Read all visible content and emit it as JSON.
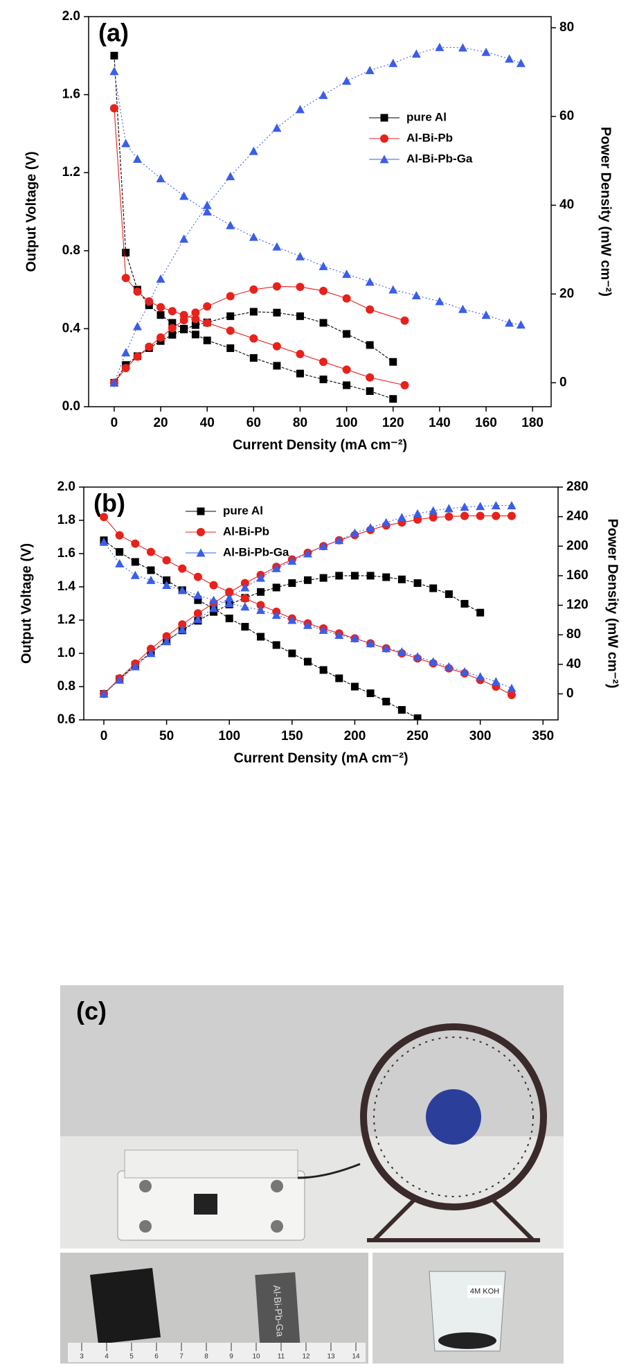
{
  "chart_data": [
    {
      "type": "line",
      "title": "(a)",
      "xlabel": "Current Density (mA cm⁻²)",
      "ylabel": "Output Voltage (V)",
      "y2label": "Power Density (mW cm⁻²)",
      "xlim": [
        -11,
        188
      ],
      "xticks": [
        0,
        20,
        40,
        60,
        80,
        100,
        120,
        140,
        160,
        180
      ],
      "ylim": [
        0,
        2.0
      ],
      "yticks": [
        {
          "value": 0,
          "label": "0.0"
        },
        0.4,
        0.8,
        1.2,
        1.6,
        {
          "value": 2,
          "label": "2.0"
        }
      ],
      "y2lim": [
        -5.4,
        82.5
      ],
      "y2ticks": [
        0,
        20,
        40,
        60,
        80
      ],
      "legend": "upper right",
      "series": [
        {
          "name": "pure Al",
          "color": "#000000",
          "marker": "square",
          "axis": "y2 for power",
          "x": [
            0,
            5,
            10,
            15,
            20,
            25,
            30,
            35,
            40,
            50,
            60,
            70,
            80,
            90,
            100,
            110,
            120
          ],
          "voltage": [
            1.8,
            0.79,
            0.6,
            0.52,
            0.47,
            0.43,
            0.4,
            0.37,
            0.34,
            0.3,
            0.25,
            0.21,
            0.17,
            0.14,
            0.11,
            0.08,
            0.04
          ],
          "power": [
            0,
            4.0,
            6.0,
            7.8,
            9.4,
            10.8,
            12.0,
            13.0,
            13.6,
            15.0,
            16.0,
            15.8,
            15.0,
            13.5,
            11.0,
            8.5,
            4.7
          ]
        },
        {
          "name": "Al-Bi-Pb",
          "color": "#e8211b",
          "marker": "circle",
          "axis": "y2 for power",
          "x": [
            0,
            5,
            10,
            15,
            20,
            25,
            30,
            35,
            40,
            50,
            60,
            70,
            80,
            90,
            100,
            110,
            125
          ],
          "voltage": [
            1.53,
            0.66,
            0.59,
            0.54,
            0.51,
            0.49,
            0.47,
            0.45,
            0.43,
            0.39,
            0.35,
            0.31,
            0.27,
            0.23,
            0.19,
            0.15,
            0.11
          ],
          "power": [
            0,
            3.3,
            5.9,
            8.1,
            10.2,
            12.3,
            14.1,
            15.8,
            17.2,
            19.5,
            21.0,
            21.7,
            21.6,
            20.7,
            19.0,
            16.5,
            14.0
          ]
        },
        {
          "name": "Al-Bi-Pb-Ga",
          "color": "#3a5ee8",
          "marker": "triangle",
          "axis": "y2 for power",
          "x": [
            0,
            5,
            10,
            20,
            30,
            40,
            50,
            60,
            70,
            80,
            90,
            100,
            110,
            120,
            130,
            140,
            150,
            160,
            170,
            175
          ],
          "voltage": [
            1.72,
            1.35,
            1.27,
            1.17,
            1.08,
            1.0,
            0.93,
            0.87,
            0.82,
            0.77,
            0.72,
            0.68,
            0.64,
            0.6,
            0.57,
            0.54,
            0.5,
            0.47,
            0.43,
            0.42
          ],
          "power": [
            0,
            6.8,
            12.7,
            23.4,
            32.4,
            40.0,
            46.5,
            52.2,
            57.4,
            61.6,
            64.8,
            68.0,
            70.4,
            72.0,
            74.1,
            75.6,
            75.5,
            74.5,
            73.0,
            72.0
          ]
        }
      ]
    },
    {
      "type": "line",
      "title": "(b)",
      "xlabel": "Current Density (mA cm⁻²)",
      "ylabel": "Output Voltage (V)",
      "y2label": "Power Density (mW cm⁻²)",
      "xlim": [
        -16,
        362
      ],
      "xticks": [
        0,
        50,
        100,
        150,
        200,
        250,
        300,
        350
      ],
      "ylim": [
        0.6,
        2.0
      ],
      "yticks": [
        0.6,
        0.8,
        {
          "value": 1,
          "label": "1.0"
        },
        1.2,
        1.4,
        1.6,
        1.8,
        {
          "value": 2,
          "label": "2.0"
        }
      ],
      "y2lim": [
        -35.2,
        280
      ],
      "y2ticks": [
        0,
        40,
        80,
        120,
        160,
        200,
        240,
        280
      ],
      "legend": "upper left",
      "series": [
        {
          "name": "pure Al",
          "color": "#000000",
          "marker": "square",
          "axis": "y2 for power",
          "x": [
            0,
            12.5,
            25,
            37.5,
            50,
            62.5,
            75,
            87.5,
            100,
            112.5,
            125,
            137.5,
            150,
            162.5,
            175,
            187.5,
            200,
            212.5,
            225,
            237.5,
            250,
            262.5,
            275,
            287.5,
            300
          ],
          "voltage": [
            1.68,
            1.61,
            1.55,
            1.5,
            1.44,
            1.38,
            1.32,
            1.27,
            1.21,
            1.16,
            1.1,
            1.05,
            1.0,
            0.95,
            0.9,
            0.85,
            0.8,
            0.76,
            0.71,
            0.66,
            0.61,
            null,
            null,
            null,
            null
          ],
          "power": [
            0,
            20,
            39,
            56,
            72,
            86,
            99,
            111,
            121,
            130,
            138,
            144,
            150,
            154,
            157,
            160,
            160,
            160,
            158,
            155,
            150,
            143,
            135,
            122,
            110
          ]
        },
        {
          "name": "Al-Bi-Pb",
          "color": "#e8211b",
          "marker": "circle",
          "axis": "y2 for power",
          "x": [
            0,
            12.5,
            25,
            37.5,
            50,
            62.5,
            75,
            87.5,
            100,
            112.5,
            125,
            137.5,
            150,
            162.5,
            175,
            187.5,
            200,
            212.5,
            225,
            237.5,
            250,
            262.5,
            275,
            287.5,
            300,
            312.5,
            325
          ],
          "voltage": [
            1.82,
            1.71,
            1.66,
            1.61,
            1.56,
            1.51,
            1.46,
            1.41,
            1.37,
            1.33,
            1.29,
            1.25,
            1.21,
            1.18,
            1.15,
            1.12,
            1.09,
            1.06,
            1.03,
            1.0,
            0.97,
            0.94,
            0.91,
            0.88,
            0.84,
            0.8,
            0.75
          ],
          "power": [
            0,
            21,
            41,
            61,
            78,
            94,
            109,
            123,
            137,
            150,
            161,
            172,
            182,
            191,
            200,
            208,
            215,
            222,
            228,
            232,
            236,
            239,
            240,
            241,
            241,
            241,
            241
          ]
        },
        {
          "name": "Al-Bi-Pb-Ga",
          "color": "#3a5ee8",
          "marker": "triangle",
          "axis": "y2 for power",
          "x": [
            0,
            12.5,
            25,
            37.5,
            50,
            62.5,
            75,
            87.5,
            100,
            112.5,
            125,
            137.5,
            150,
            162.5,
            175,
            187.5,
            200,
            212.5,
            225,
            237.5,
            250,
            262.5,
            275,
            287.5,
            300,
            312.5,
            325
          ],
          "voltage": [
            1.67,
            1.54,
            1.47,
            1.44,
            1.41,
            1.38,
            1.35,
            1.32,
            1.3,
            1.28,
            1.26,
            1.23,
            1.2,
            1.17,
            1.14,
            1.11,
            1.09,
            1.06,
            1.03,
            1.01,
            0.98,
            0.95,
            0.92,
            0.89,
            0.86,
            0.83,
            0.79
          ],
          "power": [
            0,
            19,
            37,
            55,
            71,
            87,
            101,
            116,
            130,
            144,
            157,
            170,
            180,
            190,
            200,
            208,
            218,
            225,
            232,
            239,
            244,
            248,
            251,
            253,
            254,
            255,
            255
          ]
        }
      ]
    }
  ],
  "photo": {
    "label": "(c)",
    "electrode_text": "Al-Bi-Pb-Ga",
    "beaker_label": "4M KOH",
    "ruler": [
      3,
      4,
      5,
      6,
      7,
      8,
      9,
      10,
      11,
      12,
      13,
      14
    ]
  }
}
